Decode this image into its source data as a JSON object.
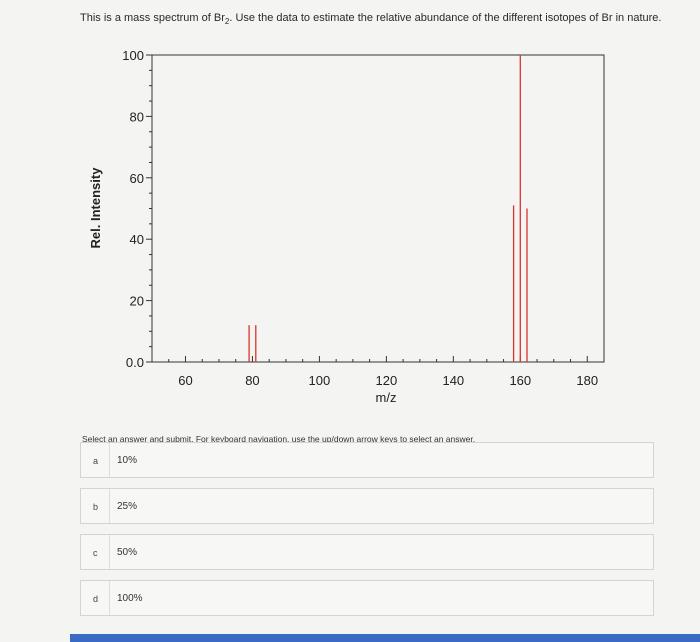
{
  "question": {
    "text_before": "This is a mass spectrum of Br",
    "subscript": "2",
    "text_after": ". Use the data to estimate the relative abundance of the different isotopes of Br in nature."
  },
  "chart_data": {
    "type": "bar",
    "title": "",
    "xlabel": "m/z",
    "ylabel": "Rel. Intensity",
    "xlim": [
      50,
      185
    ],
    "ylim": [
      0,
      100
    ],
    "xticks": [
      60,
      80,
      100,
      120,
      140,
      160,
      180
    ],
    "yticks": [
      0,
      20,
      40,
      60,
      80,
      100
    ],
    "ytick_labels": [
      "0.0",
      "20",
      "40",
      "60",
      "80",
      "100"
    ],
    "grid": false,
    "bar_color": "#d9342b",
    "peaks": [
      {
        "x": 79,
        "y": 12
      },
      {
        "x": 81,
        "y": 12
      },
      {
        "x": 158,
        "y": 51
      },
      {
        "x": 160,
        "y": 100
      },
      {
        "x": 162,
        "y": 50
      }
    ]
  },
  "instructions": "Select an answer and submit. For keyboard navigation, use the up/down arrow keys to select an answer.",
  "choices": [
    {
      "letter": "a",
      "text": "10%"
    },
    {
      "letter": "b",
      "text": "25%"
    },
    {
      "letter": "c",
      "text": "50%"
    },
    {
      "letter": "d",
      "text": "100%"
    }
  ]
}
